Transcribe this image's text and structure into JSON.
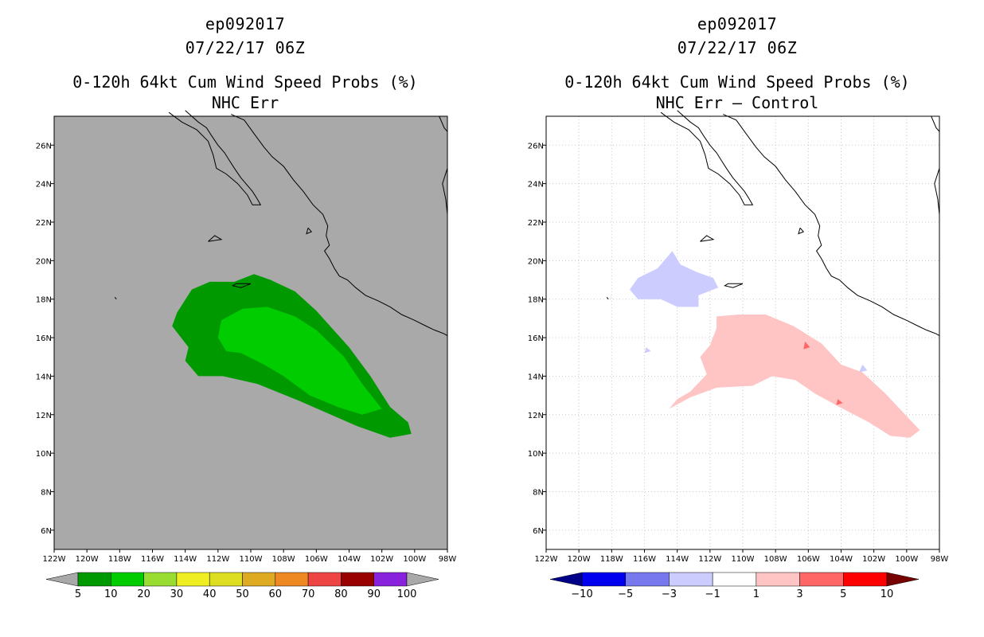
{
  "panels": [
    {
      "storm_id": "ep092017",
      "datetime": "07/22/17 06Z",
      "title": "0-120h 64kt Cum Wind Speed Probs (%)",
      "subtitle": "NHC Err",
      "background_color": "#a9a9a9",
      "colorbar": {
        "labels": [
          "5",
          "10",
          "20",
          "30",
          "40",
          "50",
          "60",
          "70",
          "80",
          "90",
          "100"
        ],
        "colors": [
          "#009900",
          "#00cc00",
          "#99dd33",
          "#eeee22",
          "#dddd22",
          "#ddaa22",
          "#ee8822",
          "#ee4444",
          "#990000",
          "#8822dd"
        ],
        "under_color": "#a9a9a9",
        "over_color": "#a9a9a9"
      }
    },
    {
      "storm_id": "ep092017",
      "datetime": "07/22/17 06Z",
      "title": "0-120h 64kt Cum Wind Speed Probs (%)",
      "subtitle": "NHC Err – Control",
      "background_color": "#ffffff",
      "colorbar": {
        "labels": [
          "−10",
          "−5",
          "−3",
          "−1",
          "1",
          "3",
          "5",
          "10"
        ],
        "colors": [
          "#0000ee",
          "#7777ee",
          "#ccccff",
          "#ffffff",
          "#ffc4c4",
          "#ff6666",
          "#ff0000"
        ],
        "under_color": "#000088",
        "over_color": "#770000"
      }
    }
  ],
  "axes": {
    "lon_labels": [
      "122W",
      "120W",
      "118W",
      "116W",
      "114W",
      "112W",
      "110W",
      "108W",
      "106W",
      "104W",
      "102W",
      "100W",
      "98W"
    ],
    "lat_labels": [
      "6N",
      "8N",
      "10N",
      "12N",
      "14N",
      "16N",
      "18N",
      "20N",
      "22N",
      "24N",
      "26N"
    ],
    "lon_values": [
      -122,
      -120,
      -118,
      -116,
      -114,
      -112,
      -110,
      -108,
      -106,
      -104,
      -102,
      -100,
      -98
    ],
    "lat_values": [
      6,
      8,
      10,
      12,
      14,
      16,
      18,
      20,
      22,
      24,
      26
    ],
    "lon_range": [
      -122,
      -98
    ],
    "lat_range": [
      5,
      27.5
    ]
  },
  "map_data": {
    "variable": "0-120h 64kt cumulative wind speed probability",
    "units": "%",
    "left_contours": [
      {
        "level": "5-10%",
        "color": "#009900",
        "lonlat": [
          [
            -113.6,
            18.5
          ],
          [
            -112.5,
            18.9
          ],
          [
            -111,
            18.9
          ],
          [
            -109.8,
            19.3
          ],
          [
            -108.8,
            19.0
          ],
          [
            -107.3,
            18.4
          ],
          [
            -106,
            17.4
          ],
          [
            -104,
            15.5
          ],
          [
            -102.7,
            14.0
          ],
          [
            -101.5,
            12.4
          ],
          [
            -100.4,
            11.6
          ],
          [
            -100.2,
            11.0
          ],
          [
            -101.5,
            10.8
          ],
          [
            -103.5,
            11.4
          ],
          [
            -107,
            12.7
          ],
          [
            -109.6,
            13.6
          ],
          [
            -111.7,
            14.0
          ],
          [
            -113.2,
            14.0
          ],
          [
            -114.0,
            14.8
          ],
          [
            -113.8,
            15.5
          ],
          [
            -114.8,
            16.6
          ],
          [
            -114.5,
            17.3
          ]
        ]
      },
      {
        "level": "10-20%",
        "color": "#00cc00",
        "lonlat": [
          [
            -111.8,
            16.9
          ],
          [
            -110.5,
            17.5
          ],
          [
            -109,
            17.6
          ],
          [
            -107.3,
            17.1
          ],
          [
            -106,
            16.4
          ],
          [
            -104.3,
            15.0
          ],
          [
            -103.2,
            13.6
          ],
          [
            -102,
            12.3
          ],
          [
            -103.2,
            12.0
          ],
          [
            -104.7,
            12.4
          ],
          [
            -106.4,
            13.0
          ],
          [
            -108,
            14.0
          ],
          [
            -109.2,
            14.6
          ],
          [
            -110.6,
            15.2
          ],
          [
            -111.5,
            15.3
          ],
          [
            -112,
            16.0
          ]
        ]
      }
    ],
    "right_contours": [
      {
        "level": "-3 to -1%",
        "color": "#ccccff",
        "lonlat": [
          [
            -116.9,
            18.5
          ],
          [
            -116.4,
            19.1
          ],
          [
            -115.2,
            19.6
          ],
          [
            -114.3,
            20.5
          ],
          [
            -113.8,
            19.8
          ],
          [
            -112.8,
            19.4
          ],
          [
            -111.8,
            19.1
          ],
          [
            -111.5,
            18.6
          ],
          [
            -112.7,
            18.2
          ],
          [
            -112.7,
            17.6
          ],
          [
            -114.0,
            17.6
          ],
          [
            -115,
            18.0
          ],
          [
            -116.4,
            18.0
          ]
        ]
      },
      {
        "level": "1-3%",
        "color": "#ffc4c4",
        "lonlat": [
          [
            -111.6,
            17.1
          ],
          [
            -110.2,
            17.2
          ],
          [
            -108.6,
            17.2
          ],
          [
            -106.9,
            16.6
          ],
          [
            -105.2,
            15.7
          ],
          [
            -104,
            14.6
          ],
          [
            -102.7,
            14.2
          ],
          [
            -101.3,
            13.1
          ],
          [
            -100.2,
            12.1
          ],
          [
            -99.2,
            11.2
          ],
          [
            -99.8,
            10.8
          ],
          [
            -101,
            10.9
          ],
          [
            -102.3,
            11.6
          ],
          [
            -104.1,
            12.4
          ],
          [
            -105.6,
            13.1
          ],
          [
            -106.8,
            13.8
          ],
          [
            -108.2,
            14.0
          ],
          [
            -109.4,
            13.5
          ],
          [
            -111.6,
            13.4
          ],
          [
            -113.2,
            12.9
          ],
          [
            -114.5,
            12.3
          ],
          [
            -114.0,
            12.8
          ],
          [
            -113.2,
            13.2
          ],
          [
            -112.2,
            14.1
          ],
          [
            -112.6,
            15.0
          ],
          [
            -112.0,
            15.6
          ],
          [
            -111.6,
            16.5
          ]
        ]
      }
    ]
  }
}
